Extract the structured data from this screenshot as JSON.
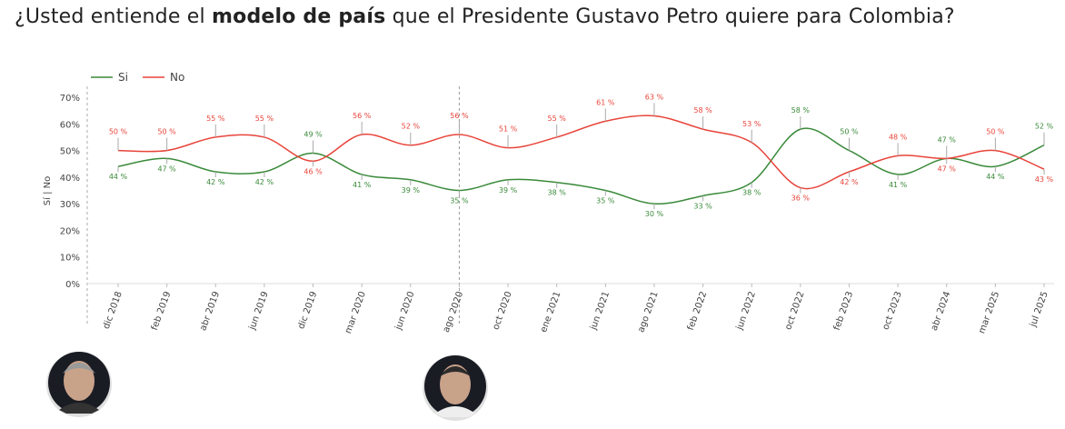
{
  "title": {
    "pre": "¿Usted entiende el ",
    "bold": "modelo de país",
    "post": " que el Presidente Gustavo Petro quiere para Colombia?"
  },
  "colors": {
    "si": "#3a8a3a",
    "no": "#e8443a"
  },
  "avatars": [
    {
      "name": "ivan-duque-avatar"
    },
    {
      "name": "gustavo-petro-avatar"
    }
  ],
  "chart_data": {
    "type": "line",
    "title": "¿Usted entiende el modelo de país que el Presidente Gustavo Petro quiere para Colombia?",
    "ylabel": "Sí | No",
    "ylim": [
      0,
      70
    ],
    "yticks": [
      "0%",
      "10%",
      "20%",
      "30%",
      "40%",
      "50%",
      "60%",
      "70%"
    ],
    "legend": "top-left",
    "label_suffix": " %",
    "categories": [
      "dic 2018",
      "feb 2019",
      "abr 2019",
      "jun 2019",
      "dic 2019",
      "mar 2020",
      "jun 2020",
      "ago 2020",
      "oct 2020",
      "ene 2021",
      "jun 2021",
      "ago 2021",
      "feb 2022",
      "jun 2022",
      "oct 2022",
      "feb 2023",
      "oct 2023",
      "abr 2024",
      "mar 2025",
      "jul 2025"
    ],
    "marker_category": "ago 2020",
    "series": [
      {
        "name": "Si",
        "values": [
          44,
          47,
          42,
          42,
          49,
          41,
          39,
          35,
          39,
          38,
          35,
          30,
          33,
          38,
          58,
          50,
          41,
          47,
          44,
          52
        ]
      },
      {
        "name": "No",
        "values": [
          50,
          50,
          55,
          55,
          46,
          56,
          52,
          56,
          51,
          55,
          61,
          63,
          58,
          53,
          36,
          42,
          48,
          47,
          50,
          43
        ]
      }
    ]
  }
}
